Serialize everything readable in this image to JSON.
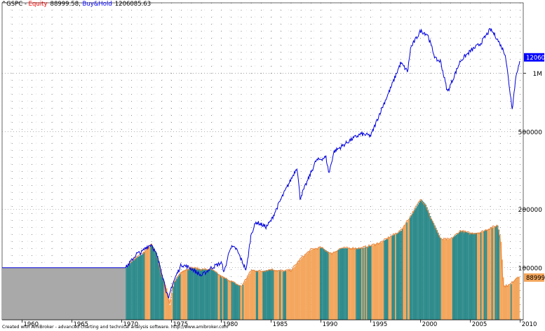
{
  "header": {
    "symbol": "^GSPC",
    "sep1": " - ",
    "equity_label": "Equity",
    "equity_value": "88999.58",
    "sep2": ", ",
    "bh_label": "Buy&Hold",
    "bh_value": "1206085.63"
  },
  "footer": {
    "credit": "Created with AmiBroker - advanced charting and technical analysis software. http://www.amibroker.com"
  },
  "colors": {
    "equity_bar_a": "#f4a65c",
    "equity_bar_b": "#2e8b8b",
    "equity_line": "#e8843a",
    "buyhold_line": "#0000dd",
    "pre_equity_area": "#a9a9a9",
    "bh_label_bg": "#0000ff",
    "equity_label_bg": "#f4a65c"
  },
  "chart_data": {
    "type": "area",
    "y_scale": "log",
    "x_ticks": [
      "1960",
      "1965",
      "1970",
      "1975",
      "1980",
      "1985",
      "1990",
      "1995",
      "2000",
      "2005",
      "2010"
    ],
    "y_ticks": [
      "1M",
      "500000",
      "200000",
      "100000"
    ],
    "ylim": [
      54000,
      2300000
    ],
    "xlim": [
      1958.0,
      2010.3
    ],
    "grid": true,
    "last_values": {
      "buyhold": "1206086",
      "equity": "88999.6"
    },
    "series": [
      {
        "name": "Buy&Hold",
        "points": [
          [
            1958.0,
            100000
          ],
          [
            1970.4,
            100000
          ],
          [
            1971.0,
            109000
          ],
          [
            1971.5,
            118000
          ],
          [
            1972.0,
            120000
          ],
          [
            1972.5,
            128000
          ],
          [
            1973.0,
            132000
          ],
          [
            1973.5,
            116000
          ],
          [
            1974.0,
            96000
          ],
          [
            1974.7,
            68000
          ],
          [
            1975.0,
            80000
          ],
          [
            1975.5,
            92000
          ],
          [
            1976.0,
            104000
          ],
          [
            1977.0,
            99000
          ],
          [
            1978.0,
            91000
          ],
          [
            1979.0,
            100000
          ],
          [
            1980.0,
            106000
          ],
          [
            1980.3,
            95000
          ],
          [
            1980.9,
            128000
          ],
          [
            1981.5,
            125000
          ],
          [
            1982.5,
            97000
          ],
          [
            1983.0,
            150000
          ],
          [
            1983.5,
            172000
          ],
          [
            1984.5,
            162000
          ],
          [
            1985.0,
            175000
          ],
          [
            1986.0,
            226000
          ],
          [
            1987.0,
            285000
          ],
          [
            1987.6,
            330000
          ],
          [
            1987.9,
            228000
          ],
          [
            1988.5,
            268000
          ],
          [
            1989.5,
            355000
          ],
          [
            1990.5,
            370000
          ],
          [
            1990.8,
            305000
          ],
          [
            1991.3,
            395000
          ],
          [
            1992.0,
            418000
          ],
          [
            1993.0,
            455000
          ],
          [
            1994.0,
            487000
          ],
          [
            1995.0,
            477000
          ],
          [
            1996.0,
            640000
          ],
          [
            1997.0,
            840000
          ],
          [
            1998.0,
            1130000
          ],
          [
            1998.7,
            1020000
          ],
          [
            1999.0,
            1350000
          ],
          [
            2000.0,
            1650000
          ],
          [
            2000.7,
            1580000
          ],
          [
            2001.5,
            1180000
          ],
          [
            2002.0,
            1150000
          ],
          [
            2002.7,
            800000
          ],
          [
            2003.0,
            870000
          ],
          [
            2004.0,
            1160000
          ],
          [
            2005.0,
            1300000
          ],
          [
            2006.0,
            1420000
          ],
          [
            2007.0,
            1680000
          ],
          [
            2007.5,
            1560000
          ],
          [
            2008.0,
            1400000
          ],
          [
            2008.5,
            1250000
          ],
          [
            2009.0,
            780000
          ],
          [
            2009.2,
            660000
          ],
          [
            2009.6,
            1000000
          ],
          [
            2010.0,
            1150000
          ],
          [
            2010.3,
            1206086
          ]
        ]
      },
      {
        "name": "Equity",
        "start": 1970.4,
        "points": [
          [
            1970.4,
            100000
          ],
          [
            1971.0,
            108000
          ],
          [
            1971.5,
            113000
          ],
          [
            1972.0,
            117000
          ],
          [
            1972.5,
            125000
          ],
          [
            1973.0,
            131000
          ],
          [
            1973.5,
            118000
          ],
          [
            1974.0,
            92000
          ],
          [
            1974.5,
            77000
          ],
          [
            1974.8,
            64000
          ],
          [
            1975.2,
            84000
          ],
          [
            1976.0,
            96000
          ],
          [
            1977.0,
            100000
          ],
          [
            1978.0,
            98000
          ],
          [
            1979.0,
            98000
          ],
          [
            1980.0,
            90000
          ],
          [
            1981.0,
            85000
          ],
          [
            1982.0,
            80000
          ],
          [
            1983.0,
            97000
          ],
          [
            1984.0,
            96000
          ],
          [
            1985.0,
            98000
          ],
          [
            1986.0,
            96000
          ],
          [
            1987.0,
            97000
          ],
          [
            1988.0,
            112000
          ],
          [
            1989.0,
            124000
          ],
          [
            1990.0,
            127000
          ],
          [
            1991.0,
            118000
          ],
          [
            1992.0,
            126000
          ],
          [
            1993.0,
            126000
          ],
          [
            1994.0,
            126000
          ],
          [
            1995.0,
            130000
          ],
          [
            1996.0,
            135000
          ],
          [
            1997.0,
            145000
          ],
          [
            1998.0,
            155000
          ],
          [
            1999.0,
            185000
          ],
          [
            2000.0,
            225000
          ],
          [
            2000.5,
            210000
          ],
          [
            2001.0,
            180000
          ],
          [
            2001.5,
            160000
          ],
          [
            2002.0,
            140000
          ],
          [
            2003.0,
            140000
          ],
          [
            2004.0,
            155000
          ],
          [
            2005.0,
            150000
          ],
          [
            2006.0,
            152000
          ],
          [
            2007.0,
            160000
          ],
          [
            2007.7,
            165000
          ],
          [
            2008.0,
            140000
          ],
          [
            2008.3,
            80000
          ],
          [
            2009.0,
            82000
          ],
          [
            2009.7,
            90000
          ],
          [
            2010.3,
            88999.6
          ]
        ]
      }
    ]
  }
}
